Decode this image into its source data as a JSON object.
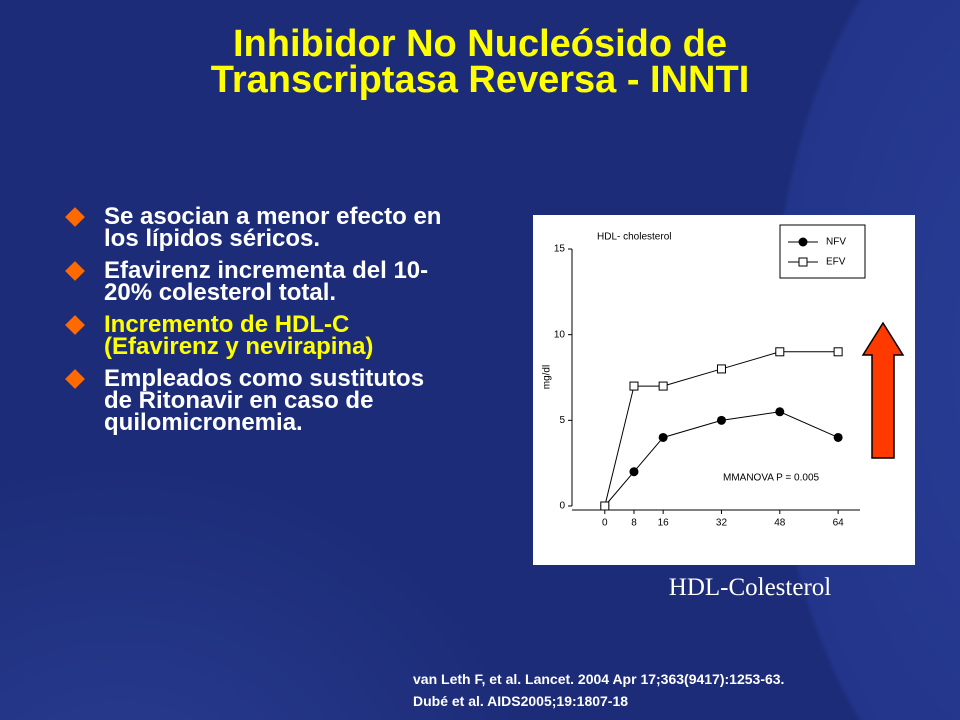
{
  "title": [
    "Inhibidor No Nucleósido de",
    "Transcriptasa Reversa - INNTI"
  ],
  "bullets": [
    "Se asocian a menor efecto en los lípidos séricos.",
    "Efavirenz incrementa del 10-20% colesterol total.",
    "Incremento de HDL-C (Efavirenz y nevirapina)",
    "Empleados como sustitutos de Ritonavir en caso de quilomicronemia."
  ],
  "chart_data": {
    "type": "line",
    "title": "HDL- cholesterol",
    "y_label": "mg/dl",
    "x": [
      0,
      8,
      16,
      32,
      48,
      64
    ],
    "xlim": [
      -9,
      70
    ],
    "xticks": [
      0,
      8,
      16,
      32,
      48,
      64
    ],
    "ylim": [
      0,
      15
    ],
    "yticks": [
      0,
      5,
      10,
      15
    ],
    "series": [
      {
        "name": "NFV",
        "color": "#000000",
        "marker": "circle",
        "values": [
          0,
          2,
          4,
          5,
          5.5,
          4
        ]
      },
      {
        "name": "EFV",
        "color": "#000000",
        "marker": "square",
        "values": [
          0,
          7,
          7,
          8,
          9,
          9
        ]
      }
    ],
    "legend": "upper right",
    "annotation": "MMANOVA P = 0.005"
  },
  "caption": "HDL-Colesterol",
  "references": [
    "van Leth F, et al. Lancet. 2004 Apr 17;363(9417):1253-63.",
    "Dubé et al. AIDS2005;19:1807-18"
  ]
}
